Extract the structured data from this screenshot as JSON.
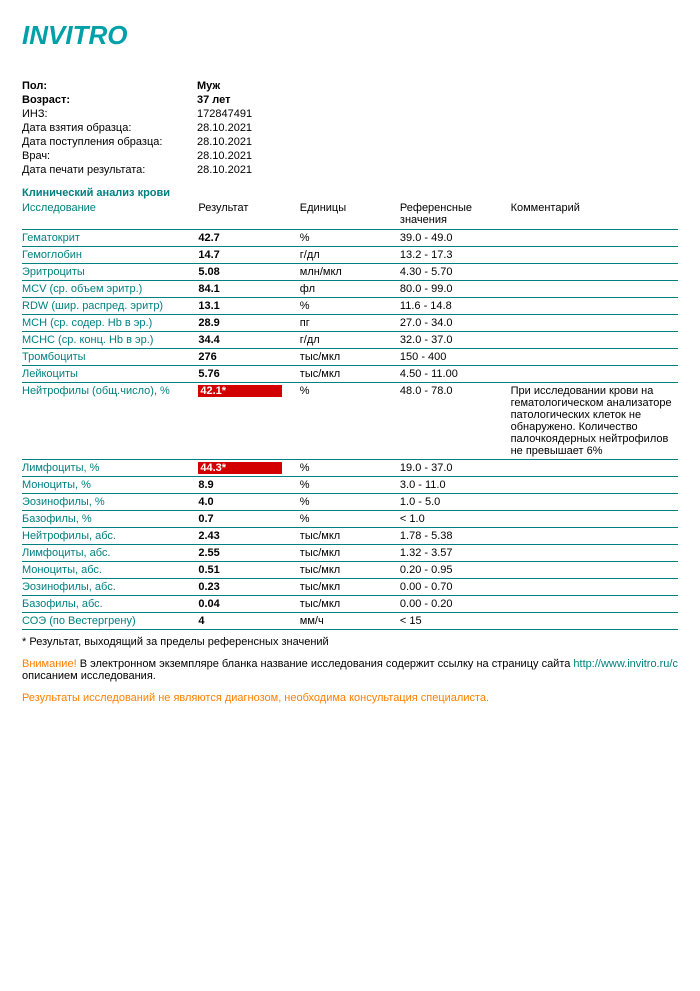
{
  "logo_text": "INVITRO",
  "colors": {
    "brand": "#00a0a8",
    "teal_line": "#008080",
    "flag_bg": "#d30000",
    "flag_fg": "#ffffff",
    "orange": "#ff7f00"
  },
  "meta": [
    {
      "label": "Пол:",
      "value": "Муж",
      "bold": true
    },
    {
      "label": "Возраст:",
      "value": "37 лет",
      "bold": true
    },
    {
      "label": "ИНЗ:",
      "value": "172847491",
      "bold": false
    },
    {
      "label": "Дата взятия образца:",
      "value": "28.10.2021",
      "bold": false
    },
    {
      "label": "Дата поступления образца:",
      "value": "28.10.2021",
      "bold": false
    },
    {
      "label": "Врач:",
      "value": "28.10.2021",
      "bold": false
    },
    {
      "label": "Дата печати результата:",
      "value": "28.10.2021",
      "bold": false
    }
  ],
  "section_title": "Клинический анализ крови",
  "columns": {
    "test": "Исследование",
    "result": "Результат",
    "units": "Единицы",
    "ref": "Референсные значения",
    "comment": "Комментарий"
  },
  "rows": [
    {
      "test": "Гематокрит",
      "result": "42.7",
      "units": "%",
      "ref": "39.0 - 49.0",
      "comment": "",
      "flag": false
    },
    {
      "test": "Гемоглобин",
      "result": "14.7",
      "units": "г/дл",
      "ref": "13.2 - 17.3",
      "comment": "",
      "flag": false
    },
    {
      "test": "Эритроциты",
      "result": "5.08",
      "units": "млн/мкл",
      "ref": "4.30 - 5.70",
      "comment": "",
      "flag": false
    },
    {
      "test": "MCV (ср. объем эритр.)",
      "result": "84.1",
      "units": "фл",
      "ref": "80.0 - 99.0",
      "comment": "",
      "flag": false
    },
    {
      "test": "RDW (шир. распред. эритр)",
      "result": "13.1",
      "units": "%",
      "ref": "11.6 - 14.8",
      "comment": "",
      "flag": false
    },
    {
      "test": "MCH (ср. содер. Hb в эр.)",
      "result": "28.9",
      "units": "пг",
      "ref": "27.0 - 34.0",
      "comment": "",
      "flag": false
    },
    {
      "test": "MCHC (ср. конц. Hb в эр.)",
      "result": "34.4",
      "units": "г/дл",
      "ref": "32.0 - 37.0",
      "comment": "",
      "flag": false
    },
    {
      "test": "Тромбоциты",
      "result": "276",
      "units": "тыс/мкл",
      "ref": "150 - 400",
      "comment": "",
      "flag": false
    },
    {
      "test": "Лейкоциты",
      "result": "5.76",
      "units": "тыс/мкл",
      "ref": "4.50 - 11.00",
      "comment": "",
      "flag": false
    },
    {
      "test": "Нейтрофилы (общ.число), %",
      "result": "42.1*",
      "units": "%",
      "ref": "48.0 - 78.0",
      "comment": "При исследовании крови на гематологическом анализаторе патологических клеток не обнаружено. Количество палочкоядерных нейтрофилов не превышает 6%",
      "flag": true
    },
    {
      "test": "Лимфоциты, %",
      "result": "44.3*",
      "units": "%",
      "ref": "19.0 - 37.0",
      "comment": "",
      "flag": true
    },
    {
      "test": "Моноциты, %",
      "result": "8.9",
      "units": "%",
      "ref": "3.0 - 11.0",
      "comment": "",
      "flag": false
    },
    {
      "test": "Эозинофилы, %",
      "result": "4.0",
      "units": "%",
      "ref": "1.0 - 5.0",
      "comment": "",
      "flag": false
    },
    {
      "test": "Базофилы, %",
      "result": "0.7",
      "units": "%",
      "ref": "< 1.0",
      "comment": "",
      "flag": false
    },
    {
      "test": "Нейтрофилы, абс.",
      "result": "2.43",
      "units": "тыс/мкл",
      "ref": "1.78 - 5.38",
      "comment": "",
      "flag": false
    },
    {
      "test": "Лимфоциты, абс.",
      "result": "2.55",
      "units": "тыс/мкл",
      "ref": "1.32 - 3.57",
      "comment": "",
      "flag": false
    },
    {
      "test": "Моноциты, абс.",
      "result": "0.51",
      "units": "тыс/мкл",
      "ref": "0.20 - 0.95",
      "comment": "",
      "flag": false
    },
    {
      "test": "Эозинофилы, абс.",
      "result": "0.23",
      "units": "тыс/мкл",
      "ref": "0.00 - 0.70",
      "comment": "",
      "flag": false
    },
    {
      "test": "Базофилы, абс.",
      "result": "0.04",
      "units": "тыс/мкл",
      "ref": "0.00 - 0.20",
      "comment": "",
      "flag": false
    },
    {
      "test": "СОЭ (по Вестергрену)",
      "result": "4",
      "units": "мм/ч",
      "ref": "< 15",
      "comment": "",
      "flag": false
    }
  ],
  "footnote": "* Результат, выходящий за пределы референсных значений",
  "warn_prefix": "Внимание!",
  "warn_text_1": " В электронном экземпляре бланка название исследования содержит ссылку на страницу сайта ",
  "warn_link": "http://www.invitro.ru/с",
  "warn_text_2": " описанием исследования.",
  "warn2": "Результаты исследований не являются диагнозом, необходима консультация специалиста."
}
